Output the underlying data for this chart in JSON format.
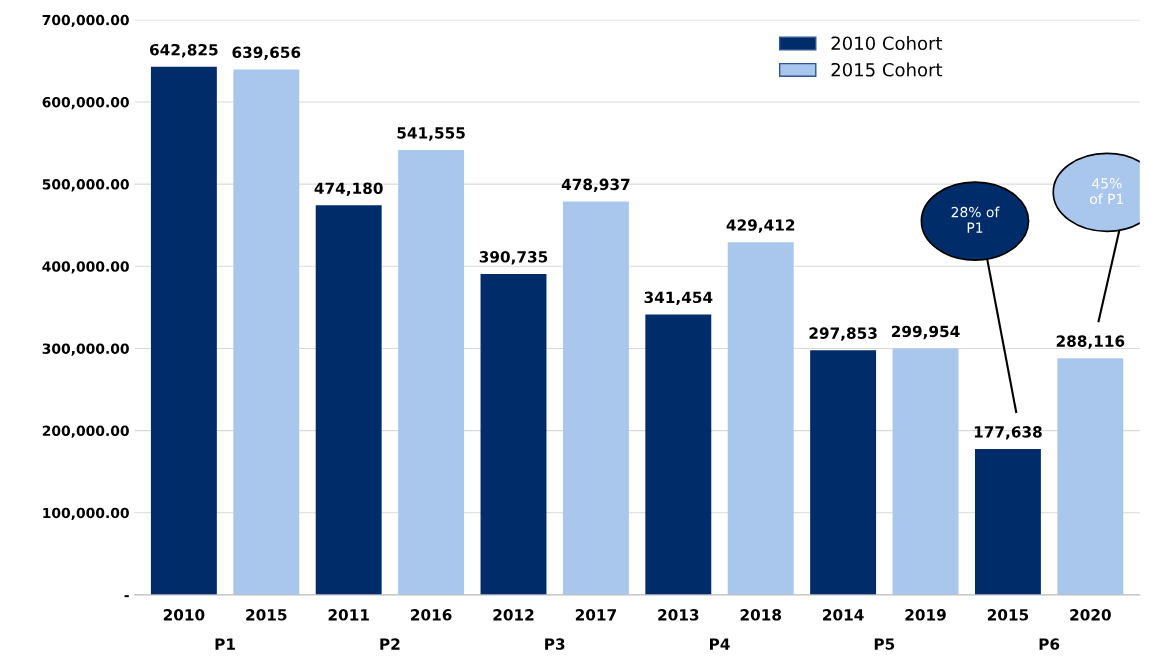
{
  "chart_data": {
    "type": "bar",
    "categories": [
      "2010",
      "2015",
      "2011",
      "2016",
      "2012",
      "2017",
      "2013",
      "2018",
      "2014",
      "2019",
      "2015",
      "2020"
    ],
    "series": [
      {
        "name": "2010 Cohort",
        "color": "#002d6a",
        "values": [
          642825,
          null,
          474180,
          null,
          390735,
          null,
          341454,
          null,
          297853,
          null,
          177638,
          null
        ],
        "value_labels": [
          "642,825",
          null,
          "474,180",
          null,
          "390,735",
          null,
          "341,454",
          null,
          "297,853",
          null,
          "177,638",
          null
        ]
      },
      {
        "name": "2015 Cohort",
        "color": "#a9c6ec",
        "values": [
          null,
          639656,
          null,
          541555,
          null,
          478937,
          null,
          429412,
          null,
          299954,
          null,
          288116
        ],
        "value_labels": [
          null,
          "639,656",
          null,
          "541,555",
          null,
          "478,937",
          null,
          "429,412",
          null,
          "299,954",
          null,
          "288,116"
        ]
      }
    ],
    "ylim": [
      0,
      700000
    ],
    "yticks": [
      {
        "value": 0,
        "label": "-"
      },
      {
        "value": 100000,
        "label": "100,000.00"
      },
      {
        "value": 200000,
        "label": "200,000.00"
      },
      {
        "value": 300000,
        "label": "300,000.00"
      },
      {
        "value": 400000,
        "label": "400,000.00"
      },
      {
        "value": 500000,
        "label": "500,000.00"
      },
      {
        "value": 600000,
        "label": "600,000.00"
      },
      {
        "value": 700000,
        "label": "700,000.00"
      }
    ],
    "grid": "y",
    "legend": "top right",
    "annotations": [
      "P1",
      "P2",
      "P3",
      "P4",
      "P5",
      "P6",
      "28% of\nP1",
      "45%\nof P1"
    ]
  }
}
